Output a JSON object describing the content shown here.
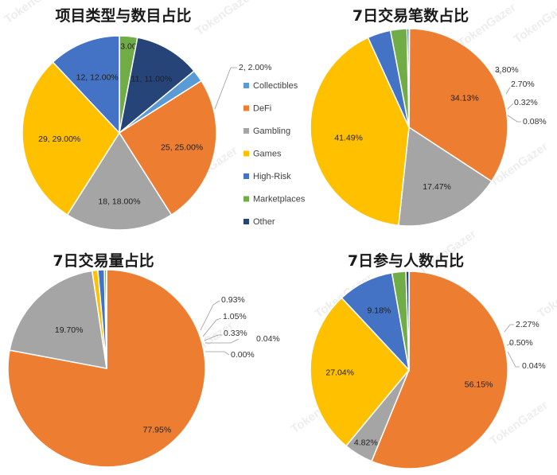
{
  "watermark": "TokenGazer",
  "colors": {
    "Collectibles": "#5b9bd5",
    "DeFi": "#ed7d31",
    "Gambling": "#a5a5a5",
    "Games": "#ffc000",
    "High-Risk": "#4472c4",
    "Marketplaces": "#70ad47",
    "Other": "#264478"
  },
  "legend": [
    "Collectibles",
    "DeFi",
    "Gambling",
    "Games",
    "High-Risk",
    "Marketplaces",
    "Other"
  ],
  "chart_data": [
    {
      "type": "pie",
      "title": "项目类型与数目占比",
      "slices": [
        {
          "category": "Collectibles",
          "value": 2,
          "percent": 2.0,
          "label": "2, 2.00%"
        },
        {
          "category": "DeFi",
          "value": 25,
          "percent": 25.0,
          "label": "25, 25.00%"
        },
        {
          "category": "Gambling",
          "value": 18,
          "percent": 18.0,
          "label": "18, 18.00%"
        },
        {
          "category": "Games",
          "value": 29,
          "percent": 29.0,
          "label": "29, 29.00%"
        },
        {
          "category": "High-Risk",
          "value": 12,
          "percent": 12.0,
          "label": "12, 12.00%"
        },
        {
          "category": "Marketplaces",
          "value": 3,
          "percent": 3.0,
          "label": "3, 3.00%"
        },
        {
          "category": "Other",
          "value": 11,
          "percent": 11.0,
          "label": "11, 11.00%"
        }
      ],
      "legend_position": "right"
    },
    {
      "type": "pie",
      "title": "7日交易笔数占比",
      "slices": [
        {
          "category": "Collectibles",
          "percent": 0.08,
          "label": "0.08%"
        },
        {
          "category": "DeFi",
          "percent": 34.13,
          "label": "34.13%"
        },
        {
          "category": "Gambling",
          "percent": 17.47,
          "label": "17.47%"
        },
        {
          "category": "Games",
          "percent": 41.49,
          "label": "41.49%"
        },
        {
          "category": "High-Risk",
          "percent": 3.8,
          "label": "3.80%"
        },
        {
          "category": "Marketplaces",
          "percent": 2.7,
          "label": "2.70%"
        },
        {
          "category": "Other",
          "percent": 0.32,
          "label": "0.32%"
        }
      ]
    },
    {
      "type": "pie",
      "title": "7日交易量占比",
      "slices": [
        {
          "category": "Collectibles",
          "percent": 0.0,
          "label": "0.00%"
        },
        {
          "category": "DeFi",
          "percent": 77.95,
          "label": "77.95%"
        },
        {
          "category": "Gambling",
          "percent": 19.7,
          "label": "19.70%"
        },
        {
          "category": "Games",
          "percent": 0.93,
          "label": "0.93%"
        },
        {
          "category": "High-Risk",
          "percent": 1.05,
          "label": "1.05%"
        },
        {
          "category": "Marketplaces",
          "percent": 0.33,
          "label": "0.33%"
        },
        {
          "category": "Other",
          "percent": 0.04,
          "label": "0.04%"
        }
      ]
    },
    {
      "type": "pie",
      "title": "7日参与人数占比",
      "slices": [
        {
          "category": "Collectibles",
          "percent": 0.04,
          "label": "0.04%"
        },
        {
          "category": "DeFi",
          "percent": 56.15,
          "label": "56.15%"
        },
        {
          "category": "Gambling",
          "percent": 4.82,
          "label": "4.82%"
        },
        {
          "category": "Games",
          "percent": 27.04,
          "label": "27.04%"
        },
        {
          "category": "High-Risk",
          "percent": 9.18,
          "label": "9.18%"
        },
        {
          "category": "Marketplaces",
          "percent": 2.27,
          "label": "2.27%"
        },
        {
          "category": "Other",
          "percent": 0.5,
          "label": "0.50%"
        }
      ]
    }
  ]
}
